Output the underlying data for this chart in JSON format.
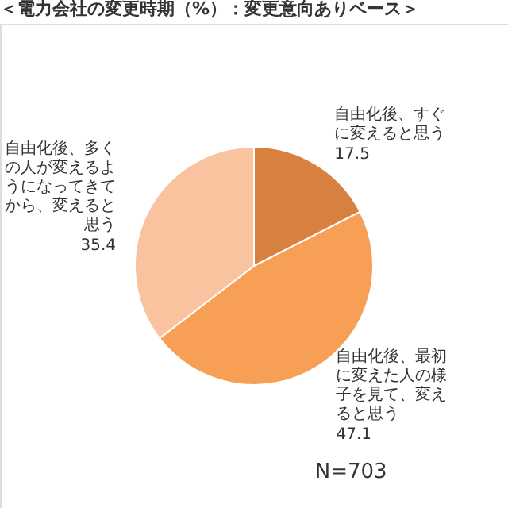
{
  "chart_data": {
    "type": "pie",
    "title": "＜電力会社の変更時期（%）：変更意向ありベース＞",
    "categories": [
      "自由化後、すぐに変えると思う",
      "自由化後、最初に変えた人の様子を見て、変えると思う",
      "自由化後、多くの人が変えるようになってきてから、変えると思う"
    ],
    "values": [
      17.5,
      47.1,
      35.4
    ],
    "colors": [
      "#d8803f",
      "#f7a055",
      "#f9c3a0"
    ],
    "data_labels": true,
    "legend": false,
    "annotations": [
      "N=703"
    ]
  }
}
